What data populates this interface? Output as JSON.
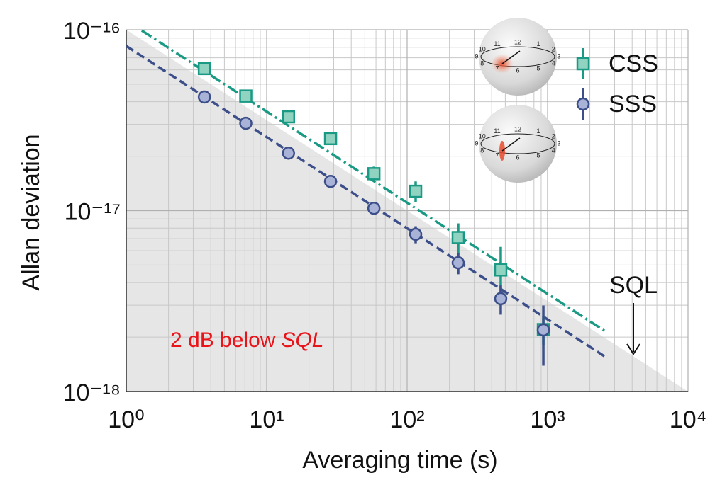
{
  "chart_data": {
    "type": "scatter",
    "xlabel": "Averaging time (s)",
    "ylabel": "Allan deviation",
    "log_x": true,
    "log_y": true,
    "grid": true,
    "minor_grid": true,
    "xlim": [
      1,
      10000
    ],
    "ylim": [
      1e-18,
      1e-16
    ],
    "xticks": [
      {
        "value": 1,
        "label": "10⁰"
      },
      {
        "value": 10,
        "label": "10¹"
      },
      {
        "value": 100,
        "label": "10²"
      },
      {
        "value": 1000,
        "label": "10³"
      },
      {
        "value": 10000,
        "label": "10⁴"
      }
    ],
    "yticks": [
      {
        "value": 1e-18,
        "label": "10⁻¹⁸"
      },
      {
        "value": 1e-17,
        "label": "10⁻¹⁷"
      },
      {
        "value": 1e-16,
        "label": "10⁻¹⁶"
      }
    ],
    "legend": "upper right",
    "series": [
      {
        "name": "CSS",
        "color": "#1a9a85",
        "fill": "#8fd3c0",
        "marker": "square",
        "x": [
          3.6,
          7.1,
          14.3,
          28.5,
          58,
          115,
          231,
          464,
          933
        ],
        "values": [
          6.1e-17,
          4.3e-17,
          3.3e-17,
          2.5e-17,
          1.6e-17,
          1.28e-17,
          7.1e-18,
          4.7e-18,
          2.2e-18
        ],
        "errors": [
          2e-18,
          1.5e-18,
          1.5e-18,
          1e-18,
          1.5e-18,
          1.7e-18,
          1.4e-18,
          1.6e-18,
          4e-19
        ],
        "fit": {
          "x": [
            1.29,
            2535
          ],
          "values": [
            9.9e-17,
            2.17e-18
          ]
        }
      },
      {
        "name": "SSS",
        "color": "#3d4f8a",
        "fill": "#a9b3d8",
        "marker": "circle",
        "x": [
          3.6,
          7.1,
          14.3,
          28.5,
          58,
          115,
          231,
          464,
          933
        ],
        "values": [
          4.25e-17,
          3.04e-17,
          2.08e-17,
          1.45e-17,
          1.03e-17,
          7.4e-18,
          5.15e-18,
          3.26e-18,
          2.19e-18
        ],
        "errors": [
          1e-18,
          8e-19,
          6e-19,
          5e-19,
          6e-19,
          8e-19,
          7e-19,
          6e-19,
          8e-19
        ],
        "fit": {
          "x": [
            1,
            2625
          ],
          "values": [
            8.13e-17,
            1.54e-18
          ]
        }
      }
    ],
    "sql": {
      "label": "SQL",
      "x": [
        1,
        10000
      ],
      "values": [
        1e-16,
        1e-18
      ]
    },
    "annotation": {
      "text": "2 dB below",
      "emphasis": "SQL",
      "color": "#e8141a"
    },
    "inset_clock_labels": [
      "12",
      "1",
      "2",
      "3",
      "4",
      "5",
      "6",
      "7",
      "8",
      "9",
      "10",
      "11"
    ]
  }
}
